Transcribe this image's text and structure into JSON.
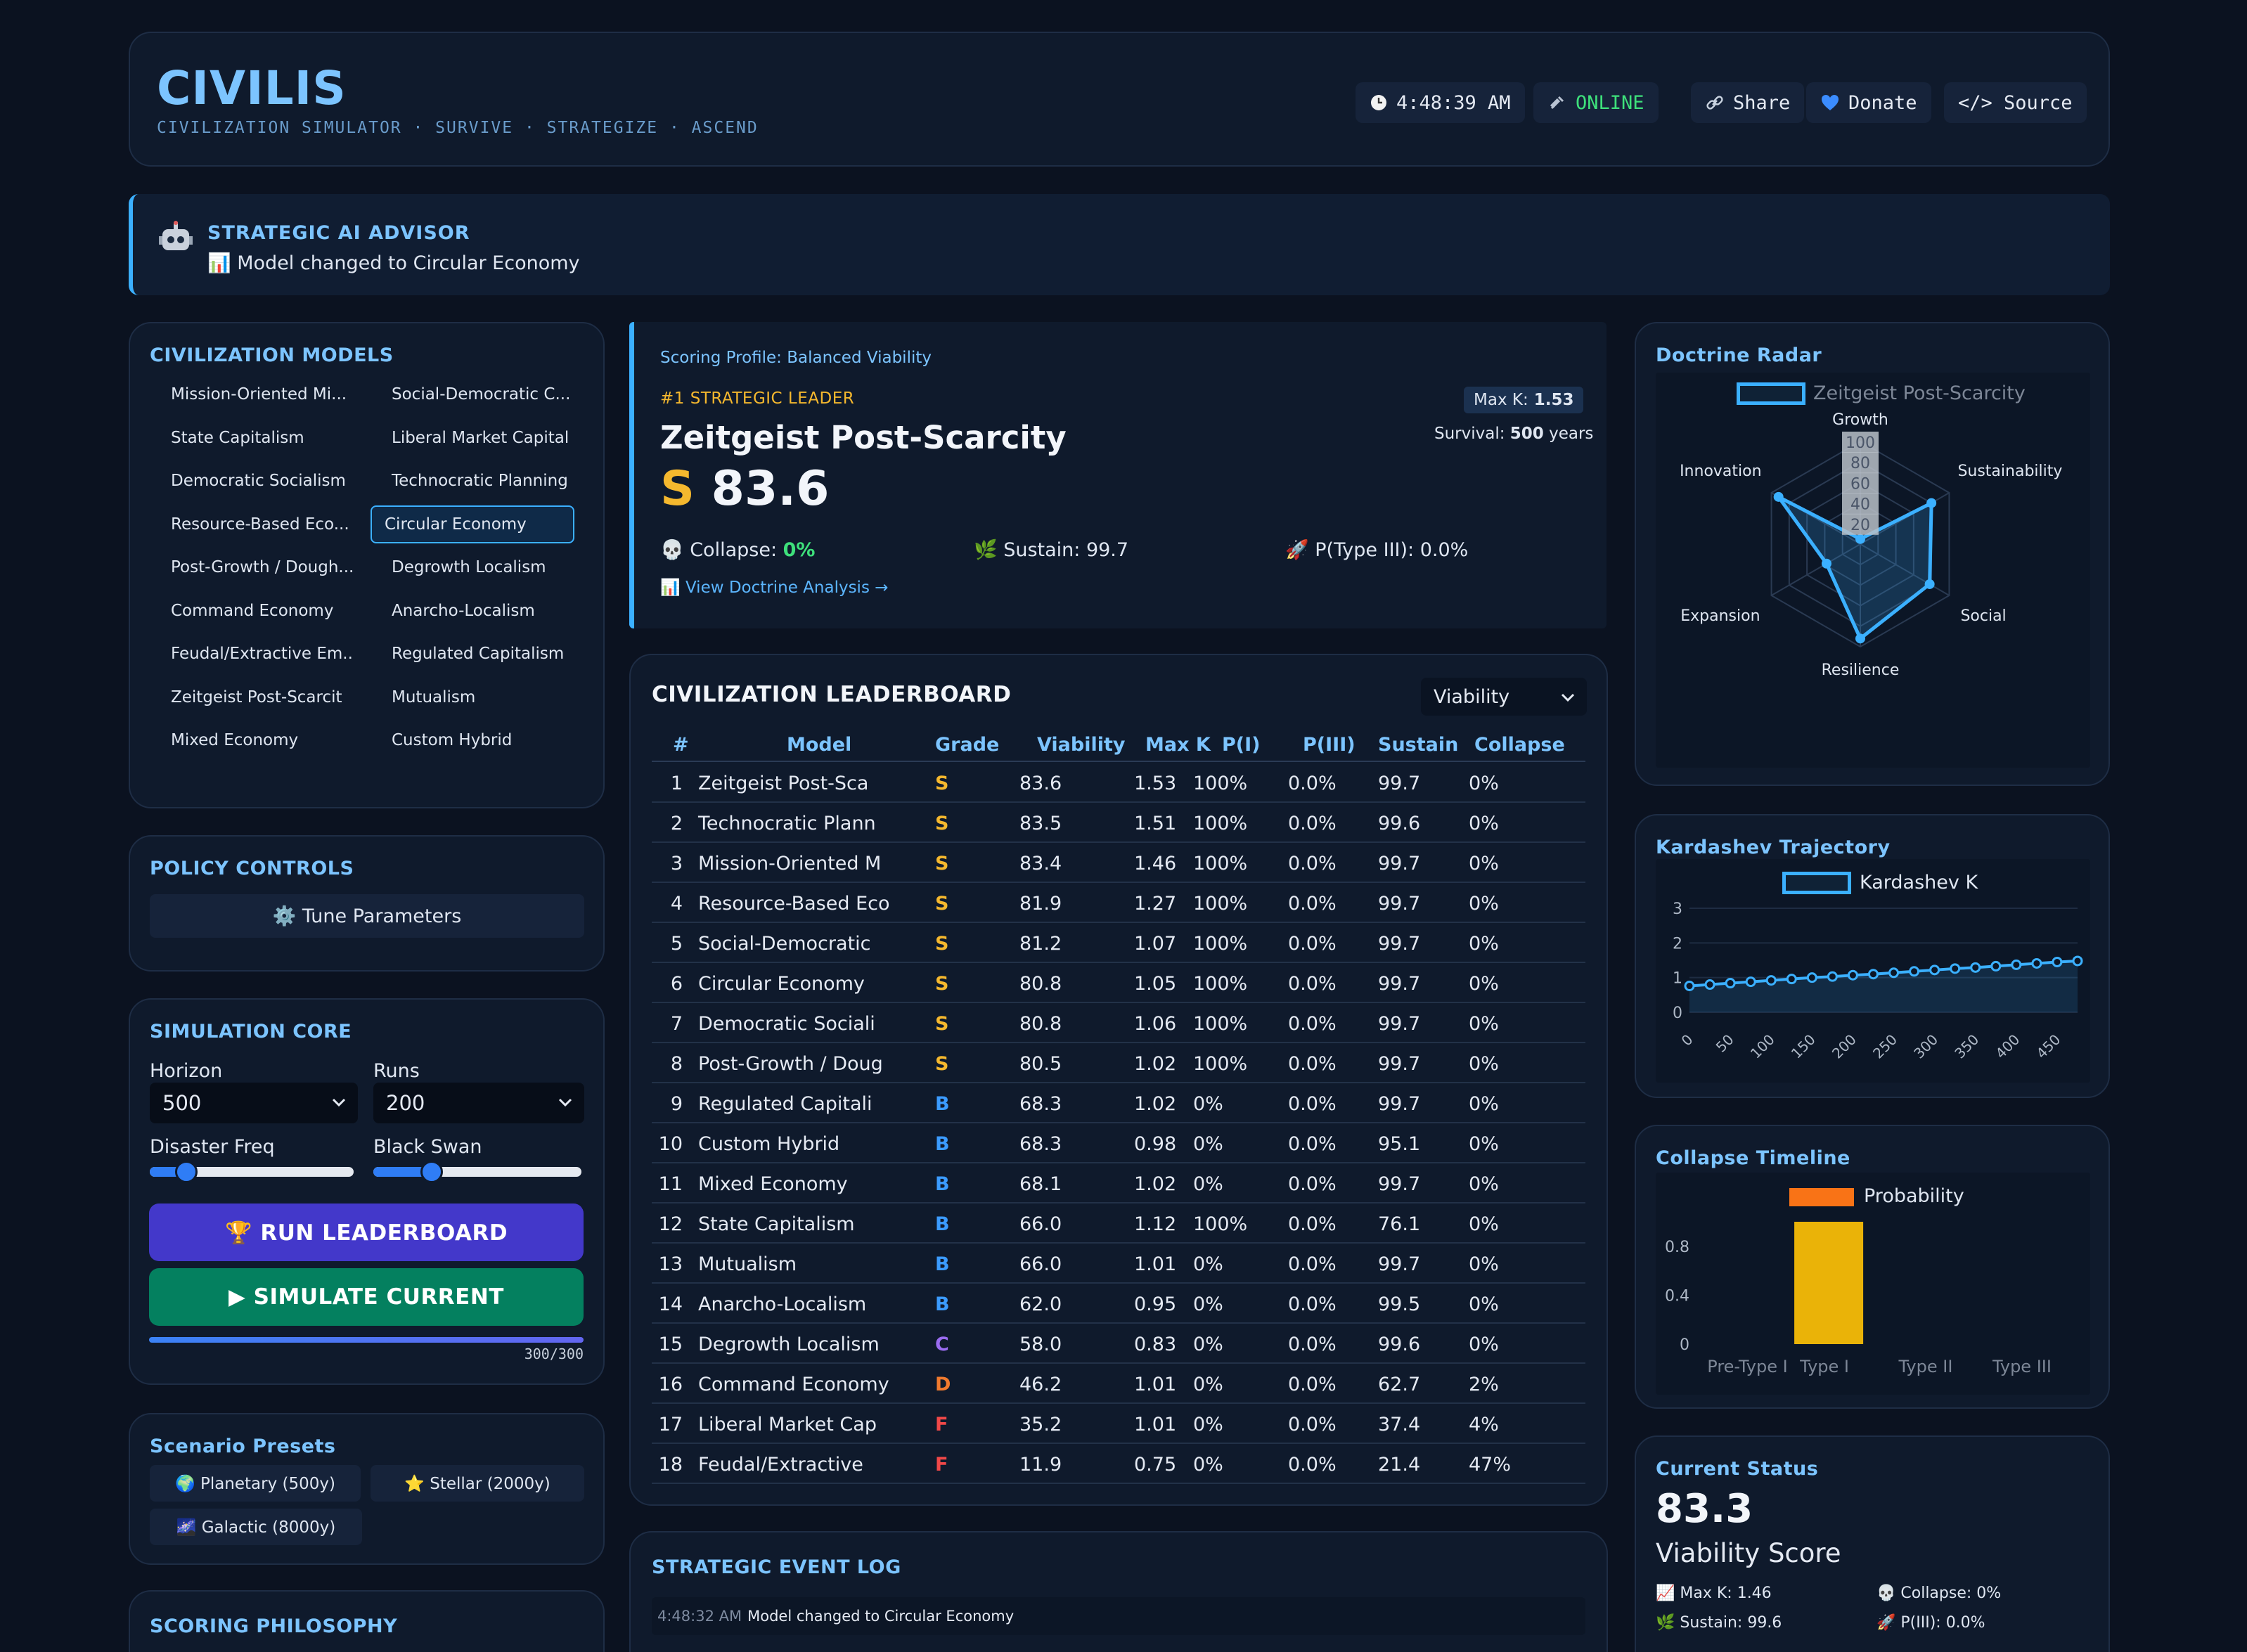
{
  "header": {
    "logo": "CIVILIS",
    "tagline": "CIVILIZATION SIMULATOR · SURVIVE · STRATEGIZE · ASCEND",
    "clock": "4:48:39 AM",
    "status": "ONLINE",
    "share": "Share",
    "donate": "Donate",
    "source": "</> Source",
    "status_color": "#3ee07b"
  },
  "advisor": {
    "title": "STRATEGIC AI ADVISOR",
    "message": "📊 Model changed to Circular Economy"
  },
  "models": {
    "title": "CIVILIZATION MODELS",
    "items": [
      "Mission-Oriented Mi...",
      "Social-Democratic C...",
      "State Capitalism",
      "Liberal Market Capital",
      "Democratic Socialism",
      "Technocratic Planning",
      "Resource-Based Eco...",
      "Circular Economy",
      "Post-Growth / Dough...",
      "Degrowth Localism",
      "Command Economy",
      "Anarcho-Localism",
      "Feudal/Extractive Em...",
      "Regulated Capitalism",
      "Zeitgeist Post-Scarcit",
      "Mutualism",
      "Mixed Economy",
      "Custom Hybrid"
    ],
    "selected": "Circular Economy"
  },
  "policy": {
    "title": "POLICY CONTROLS",
    "tune_label": "⚙️ Tune Parameters"
  },
  "simcore": {
    "title": "SIMULATION CORE",
    "horizon_label": "Horizon",
    "horizon_value": "500",
    "runs_label": "Runs",
    "runs_value": "200",
    "disaster_label": "Disaster Freq",
    "blackswan_label": "Black Swan",
    "disaster_level": 0.18,
    "blackswan_level": 0.28,
    "run_label": "🏆 RUN LEADERBOARD",
    "simulate_label": "▶ SIMULATE CURRENT",
    "progress_text": "300/300",
    "progress": 1.0
  },
  "presets": {
    "title": "Scenario Presets",
    "items": [
      "🌍 Planetary (500y)",
      "⭐ Stellar (2000y)",
      "🌌 Galactic (8000y)"
    ]
  },
  "philosophy": {
    "title": "SCORING PHILOSOPHY"
  },
  "leader": {
    "profile": "Scoring Profile: Balanced Viability",
    "rank_label": "#1 STRATEGIC LEADER",
    "name": "Zeitgeist Post-Scarcity",
    "grade": "S",
    "score": "83.6",
    "maxk_label": "Max K:",
    "maxk_value": "1.53",
    "survival_label": "Survival:",
    "survival_value": "500",
    "survival_unit": "years",
    "collapse_label": "💀 Collapse:",
    "collapse_value": "0%",
    "sustain_label": "🌿 Sustain: 99.7",
    "ptype3_label": "🚀 P(Type III): 0.0%",
    "link": "📊 View Doctrine Analysis →"
  },
  "board": {
    "title": "CIVILIZATION LEADERBOARD",
    "sort_value": "Viability",
    "columns": [
      "#",
      "Model",
      "Grade",
      "Viability",
      "Max K",
      "P(I)",
      "P(III)",
      "Sustain",
      "Collapse"
    ],
    "rows": [
      [
        "1",
        "Zeitgeist Post-Sca",
        "S",
        "83.6",
        "1.53",
        "100%",
        "0.0%",
        "99.7",
        "0%"
      ],
      [
        "2",
        "Technocratic Plann",
        "S",
        "83.5",
        "1.51",
        "100%",
        "0.0%",
        "99.6",
        "0%"
      ],
      [
        "3",
        "Mission-Oriented M",
        "S",
        "83.4",
        "1.46",
        "100%",
        "0.0%",
        "99.7",
        "0%"
      ],
      [
        "4",
        "Resource-Based Eco",
        "S",
        "81.9",
        "1.27",
        "100%",
        "0.0%",
        "99.7",
        "0%"
      ],
      [
        "5",
        "Social-Democratic",
        "S",
        "81.2",
        "1.07",
        "100%",
        "0.0%",
        "99.7",
        "0%"
      ],
      [
        "6",
        "Circular Economy",
        "S",
        "80.8",
        "1.05",
        "100%",
        "0.0%",
        "99.7",
        "0%"
      ],
      [
        "7",
        "Democratic Sociali",
        "S",
        "80.8",
        "1.06",
        "100%",
        "0.0%",
        "99.7",
        "0%"
      ],
      [
        "8",
        "Post-Growth / Doug",
        "S",
        "80.5",
        "1.02",
        "100%",
        "0.0%",
        "99.7",
        "0%"
      ],
      [
        "9",
        "Regulated Capitali",
        "B",
        "68.3",
        "1.02",
        "0%",
        "0.0%",
        "99.7",
        "0%"
      ],
      [
        "10",
        "Custom Hybrid",
        "B",
        "68.3",
        "0.98",
        "0%",
        "0.0%",
        "95.1",
        "0%"
      ],
      [
        "11",
        "Mixed Economy",
        "B",
        "68.1",
        "1.02",
        "0%",
        "0.0%",
        "99.7",
        "0%"
      ],
      [
        "12",
        "State Capitalism",
        "B",
        "66.0",
        "1.12",
        "100%",
        "0.0%",
        "76.1",
        "0%"
      ],
      [
        "13",
        "Mutualism",
        "B",
        "66.0",
        "1.01",
        "0%",
        "0.0%",
        "99.7",
        "0%"
      ],
      [
        "14",
        "Anarcho-Localism",
        "B",
        "62.0",
        "0.95",
        "0%",
        "0.0%",
        "99.5",
        "0%"
      ],
      [
        "15",
        "Degrowth Localism",
        "C",
        "58.0",
        "0.83",
        "0%",
        "0.0%",
        "99.6",
        "0%"
      ],
      [
        "16",
        "Command Economy",
        "D",
        "46.2",
        "1.01",
        "0%",
        "0.0%",
        "62.7",
        "2%"
      ],
      [
        "17",
        "Liberal Market Cap",
        "F",
        "35.2",
        "1.01",
        "0%",
        "0.0%",
        "37.4",
        "4%"
      ],
      [
        "18",
        "Feudal/Extractive",
        "F",
        "11.9",
        "0.75",
        "0%",
        "0.0%",
        "21.4",
        "47%"
      ]
    ],
    "grade_colors": {
      "S": "#f5b82e",
      "B": "#3b9bff",
      "C": "#9a6cf0",
      "D": "#f07a2e",
      "F": "#f04848"
    }
  },
  "eventlog": {
    "title": "STRATEGIC EVENT LOG",
    "entries": [
      {
        "time": "4:48:32 AM",
        "text": "Model changed to Circular Economy"
      }
    ]
  },
  "status": {
    "title": "Current Status",
    "score": "83.3",
    "score_label": "Viability Score",
    "maxk": "📈 Max K: 1.46",
    "collapse": "💀 Collapse: 0%",
    "sustain": "🌿 Sustain: 99.6",
    "p3": "🚀 P(III): 0.0%"
  },
  "chart_data": [
    {
      "type": "radar",
      "title": "Doctrine Radar",
      "series": [
        {
          "name": "Zeitgeist Post-Scarcity",
          "values": [
            5,
            80,
            78,
            92,
            38,
            92
          ]
        }
      ],
      "categories": [
        "Growth",
        "Sustainability",
        "Social",
        "Resilience",
        "Expansion",
        "Innovation"
      ],
      "ticks": [
        "20",
        "40",
        "60",
        "80",
        "100"
      ],
      "range": [
        0,
        100
      ]
    },
    {
      "type": "line",
      "title": "Kardashev Trajectory",
      "series": [
        {
          "name": "Kardashev K",
          "values": [
            0.76,
            0.8,
            0.84,
            0.88,
            0.92,
            0.96,
            1.0,
            1.03,
            1.07,
            1.1,
            1.14,
            1.18,
            1.22,
            1.26,
            1.29,
            1.33,
            1.37,
            1.41,
            1.45,
            1.48
          ]
        }
      ],
      "x": [
        0,
        25,
        50,
        75,
        100,
        125,
        150,
        175,
        200,
        225,
        250,
        275,
        300,
        325,
        350,
        375,
        400,
        425,
        450,
        475
      ],
      "xticks": [
        "0",
        "50",
        "100",
        "150",
        "200",
        "250",
        "300",
        "350",
        "400",
        "450"
      ],
      "yticks": [
        "0",
        "1",
        "2",
        "3"
      ],
      "ylim": [
        0,
        3
      ]
    },
    {
      "type": "bar",
      "title": "Collapse Timeline",
      "categories": [
        "Pre-Type I",
        "Type I",
        "Type II",
        "Type III"
      ],
      "series": [
        {
          "name": "Probability",
          "values": [
            0,
            1.0,
            0,
            0
          ]
        }
      ],
      "yticks": [
        "0",
        "0.4",
        "0.8"
      ],
      "ylim": [
        0,
        1.0
      ],
      "bar_color": "#eab308",
      "legend_color": "#f97316"
    }
  ]
}
